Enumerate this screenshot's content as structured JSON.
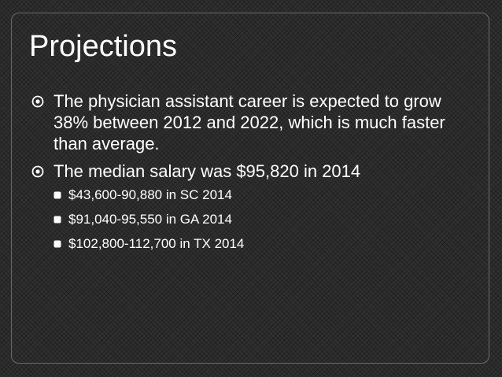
{
  "slide": {
    "title": "Projections",
    "bullets": [
      {
        "text": "The physician assistant career is expected to grow 38% between 2012 and 2022, which is much faster than average."
      },
      {
        "text": "The median salary was $95,820 in 2014",
        "sub_bullets": [
          "$43,600-90,880 in SC 2014",
          "$91,040-95,550 in GA 2014",
          "$102,800-112,700 in TX 2014"
        ]
      }
    ]
  },
  "colors": {
    "background": "#2f2f2f",
    "text": "#ffffff",
    "bullet_ring": "#ffffff",
    "frame": "#6a6a6a"
  },
  "icons": {
    "level1": "target-bullet-icon",
    "level2": "square-bullet-icon"
  }
}
